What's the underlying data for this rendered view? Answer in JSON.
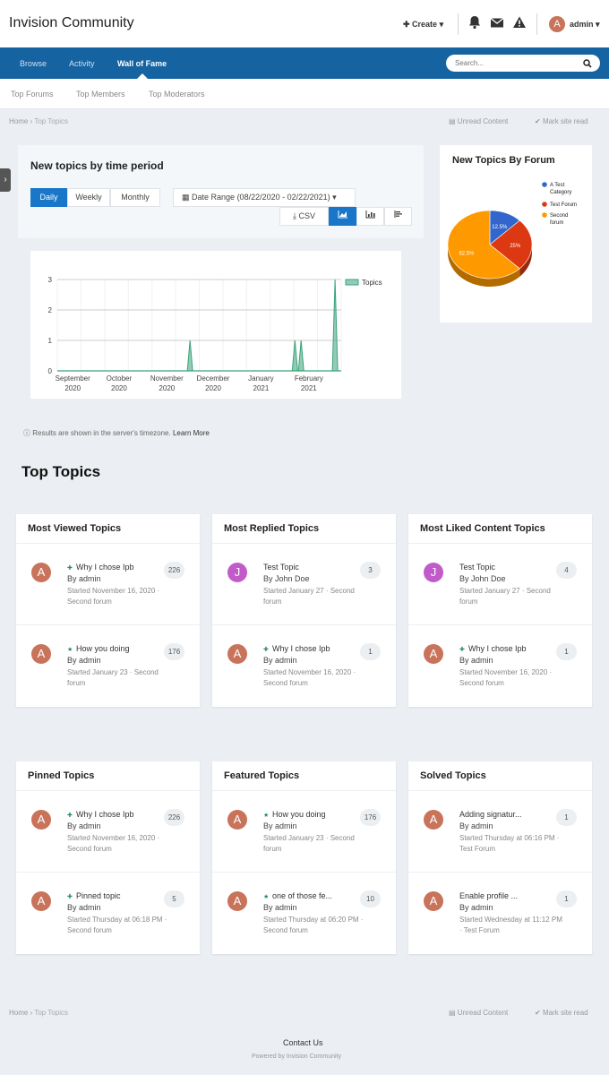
{
  "header": {
    "site_title": "Invision Community",
    "create_label": "Create",
    "user_initial": "A",
    "user_label": "admin"
  },
  "nav": {
    "tabs": [
      {
        "label": "Browse"
      },
      {
        "label": "Activity"
      },
      {
        "label": "Wall of Fame"
      }
    ],
    "search_placeholder": "Search..."
  },
  "subnav": {
    "items": [
      "Top Forums",
      "Top Members",
      "Top Moderators"
    ]
  },
  "breadcrumb": {
    "home": "Home",
    "current": "Top Topics",
    "unread": "Unread Content",
    "mark_read": "Mark site read"
  },
  "stats": {
    "title": "New topics by time period",
    "period_buttons": [
      "Daily",
      "Weekly",
      "Monthly"
    ],
    "date_range": "Date Range (08/22/2020 - 02/22/2021)",
    "csv_label": "CSV",
    "timezone_note": "Results are shown in the server's timezone.",
    "learn_more": "Learn More"
  },
  "chart_data": [
    {
      "type": "area",
      "title": "",
      "xlabel": "",
      "ylabel": "",
      "ylim": [
        0,
        3
      ],
      "yticks": [
        "0",
        "1",
        "2",
        "3"
      ],
      "xticks": [
        [
          "September",
          "2020"
        ],
        [
          "October",
          "2020"
        ],
        [
          "November",
          "2020"
        ],
        [
          "December",
          "2020"
        ],
        [
          "January",
          "2021"
        ],
        [
          "February",
          "2021"
        ]
      ],
      "legend": "top-right",
      "series": [
        {
          "name": "Topics",
          "color": "#3aa37a",
          "points": [
            {
              "x": "2020-11-16",
              "y": 1
            },
            {
              "x": "2021-01-23",
              "y": 1
            },
            {
              "x": "2021-01-27",
              "y": 1
            },
            {
              "x": "2021-02-18",
              "y": 3
            }
          ]
        }
      ]
    },
    {
      "type": "pie",
      "title": "New Topics By Forum",
      "slices": [
        {
          "label": "A Test Category",
          "value": 12.5,
          "display": "12.5%",
          "color": "#3366cc"
        },
        {
          "label": "Test Forum",
          "value": 25,
          "display": "25%",
          "color": "#dc3912"
        },
        {
          "label": "Second forum",
          "value": 62.5,
          "display": "62.5%",
          "color": "#ff9900"
        }
      ]
    }
  ],
  "top_topics_title": "Top Topics",
  "cards": [
    {
      "title": "Most Viewed Topics",
      "items": [
        {
          "initial": "A",
          "color": "#c8735a",
          "title": "Why I chose Ipb",
          "icon": "pin",
          "by": "By admin",
          "meta": "Started November 16, 2020 · Second forum",
          "count": "226"
        },
        {
          "initial": "A",
          "color": "#c8735a",
          "title": "How you doing",
          "icon": "star",
          "by": "By admin",
          "meta": "Started January 23 · Second forum",
          "count": "176"
        }
      ]
    },
    {
      "title": "Most Replied Topics",
      "items": [
        {
          "initial": "J",
          "color": "#c15bc9",
          "title": "Test Topic",
          "icon": "",
          "by": "By John Doe",
          "meta": "Started January 27 · Second forum",
          "count": "3"
        },
        {
          "initial": "A",
          "color": "#c8735a",
          "title": "Why I chose Ipb",
          "icon": "pin",
          "by": "By admin",
          "meta": "Started November 16, 2020 · Second forum",
          "count": "1"
        }
      ]
    },
    {
      "title": "Most Liked Content Topics",
      "items": [
        {
          "initial": "J",
          "color": "#c15bc9",
          "title": "Test Topic",
          "icon": "",
          "by": "By John Doe",
          "meta": "Started January 27 · Second forum",
          "count": "4"
        },
        {
          "initial": "A",
          "color": "#c8735a",
          "title": "Why I chose Ipb",
          "icon": "pin",
          "by": "By admin",
          "meta": "Started November 16, 2020 · Second forum",
          "count": "1"
        }
      ]
    },
    {
      "title": "Pinned Topics",
      "items": [
        {
          "initial": "A",
          "color": "#c8735a",
          "title": "Why I chose Ipb",
          "icon": "pin",
          "by": "By admin",
          "meta": "Started November 16, 2020 · Second forum",
          "count": "226"
        },
        {
          "initial": "A",
          "color": "#c8735a",
          "title": "Pinned topic",
          "icon": "pin",
          "by": "By admin",
          "meta": "Started Thursday at 06:18 PM · Second forum",
          "count": "5"
        }
      ]
    },
    {
      "title": "Featured Topics",
      "items": [
        {
          "initial": "A",
          "color": "#c8735a",
          "title": "How you doing",
          "icon": "star",
          "by": "By admin",
          "meta": "Started January 23 · Second forum",
          "count": "176"
        },
        {
          "initial": "A",
          "color": "#c8735a",
          "title": "one of those fe...",
          "icon": "star",
          "by": "By admin",
          "meta": "Started Thursday at 06:20 PM · Second forum",
          "count": "10"
        }
      ]
    },
    {
      "title": "Solved Topics",
      "items": [
        {
          "initial": "A",
          "color": "#c8735a",
          "title": "Adding signatur...",
          "icon": "",
          "by": "By admin",
          "meta": "Started Thursday at 06:16 PM · Test Forum",
          "count": "1"
        },
        {
          "initial": "A",
          "color": "#c8735a",
          "title": "Enable profile ...",
          "icon": "",
          "by": "By admin",
          "meta": "Started Wednesday at 11:12 PM · Test Forum",
          "count": "1"
        }
      ]
    }
  ],
  "footer": {
    "contact": "Contact Us",
    "powered": "Powered by Invision Community"
  }
}
